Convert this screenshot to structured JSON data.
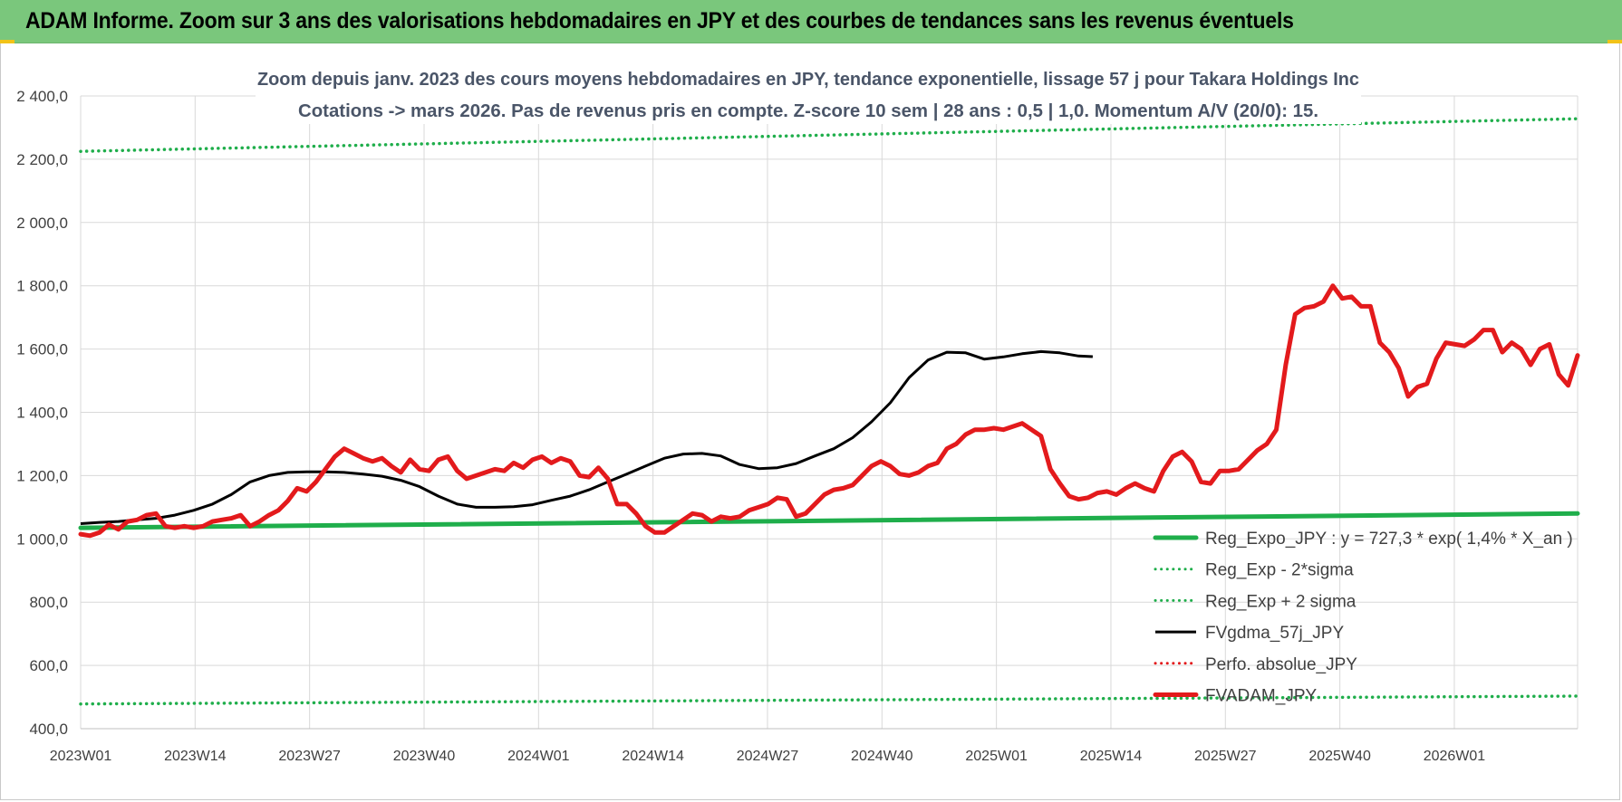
{
  "header": {
    "title": "ADAM Informe. Zoom sur 3 ans des valorisations hebdomadaires en JPY et des courbes de tendances sans les revenus éventuels",
    "background_color": "#7ac77c"
  },
  "chart_data": {
    "type": "line",
    "title_line1": "Zoom depuis janv. 2023 des cours moyens hebdomadaires en JPY, tendance exponentielle, lissage 57 j pour Takara Holdings Inc",
    "title_line2": "Cotations -> mars 2026. Pas de revenus pris en compte. Z-score 10 sem | 28 ans : 0,5 | 1,0. Momentum A/V (20/0): 15.",
    "xlabel": "",
    "ylabel": "",
    "ylim": [
      400,
      2400
    ],
    "y_ticks": [
      "400,0",
      "600,0",
      "800,0",
      "1 000,0",
      "1 200,0",
      "1 400,0",
      "1 600,0",
      "1 800,0",
      "2 000,0",
      "2 200,0",
      "2 400,0"
    ],
    "x_ticks": [
      "2023W01",
      "2023W14",
      "2023W27",
      "2023W40",
      "2024W01",
      "2024W14",
      "2024W27",
      "2024W40",
      "2025W01",
      "2025W14",
      "2025W27",
      "2025W40",
      "2026W01"
    ],
    "weeks_total": 170,
    "grid": true,
    "legend_position": "bottom-right",
    "series": [
      {
        "name": "Reg_Expo_JPY : y = 727,3 * exp( 1,4% *  X_an )",
        "color": "#1fae4b",
        "style": "solid-thick",
        "points": [
          [
            0,
            1035
          ],
          [
            170,
            1080
          ]
        ]
      },
      {
        "name": "Reg_Exp - 2*sigma",
        "color": "#1fae4b",
        "style": "dotted",
        "points": [
          [
            0,
            478
          ],
          [
            170,
            503
          ]
        ]
      },
      {
        "name": "Reg_Exp + 2 sigma",
        "color": "#1fae4b",
        "style": "dotted",
        "points": [
          [
            0,
            2225
          ],
          [
            170,
            2328
          ]
        ]
      },
      {
        "name": "FVgdma_57j_JPY",
        "color": "#000000",
        "style": "solid",
        "points": [
          [
            0,
            1048
          ],
          [
            4,
            1052
          ],
          [
            8,
            1055
          ],
          [
            12,
            1060
          ],
          [
            16,
            1065
          ],
          [
            20,
            1075
          ],
          [
            24,
            1090
          ],
          [
            28,
            1110
          ],
          [
            32,
            1140
          ],
          [
            36,
            1180
          ],
          [
            40,
            1200
          ],
          [
            44,
            1210
          ],
          [
            48,
            1212
          ],
          [
            52,
            1212
          ],
          [
            56,
            1210
          ],
          [
            60,
            1205
          ],
          [
            64,
            1198
          ],
          [
            68,
            1185
          ],
          [
            72,
            1165
          ],
          [
            76,
            1135
          ],
          [
            80,
            1110
          ],
          [
            84,
            1100
          ],
          [
            88,
            1100
          ],
          [
            92,
            1102
          ],
          [
            96,
            1108
          ],
          [
            100,
            1122
          ],
          [
            104,
            1135
          ],
          [
            108,
            1155
          ],
          [
            112,
            1180
          ],
          [
            116,
            1205
          ],
          [
            120,
            1230
          ],
          [
            124,
            1255
          ],
          [
            128,
            1268
          ],
          [
            132,
            1270
          ],
          [
            136,
            1262
          ],
          [
            140,
            1235
          ],
          [
            144,
            1222
          ],
          [
            148,
            1225
          ],
          [
            152,
            1238
          ],
          [
            156,
            1262
          ],
          [
            160,
            1285
          ],
          [
            164,
            1320
          ],
          [
            168,
            1370
          ],
          [
            172,
            1430
          ],
          [
            176,
            1510
          ],
          [
            180,
            1565
          ],
          [
            184,
            1590
          ],
          [
            188,
            1588
          ],
          [
            192,
            1568
          ],
          [
            196,
            1575
          ],
          [
            200,
            1585
          ],
          [
            204,
            1592
          ],
          [
            208,
            1588
          ],
          [
            212,
            1578
          ],
          [
            215,
            1576
          ]
        ]
      },
      {
        "name": "Perfo. absolue_JPY",
        "color": "#e31a1c",
        "style": "dotted",
        "points": []
      },
      {
        "name": "FVADAM_JPY",
        "color": "#e31a1c",
        "style": "solid-thick",
        "points": [
          [
            0,
            1015
          ],
          [
            2,
            1010
          ],
          [
            4,
            1020
          ],
          [
            6,
            1045
          ],
          [
            8,
            1030
          ],
          [
            10,
            1055
          ],
          [
            12,
            1060
          ],
          [
            14,
            1075
          ],
          [
            16,
            1080
          ],
          [
            18,
            1040
          ],
          [
            20,
            1035
          ],
          [
            22,
            1040
          ],
          [
            24,
            1035
          ],
          [
            26,
            1040
          ],
          [
            28,
            1055
          ],
          [
            30,
            1060
          ],
          [
            32,
            1065
          ],
          [
            34,
            1075
          ],
          [
            36,
            1040
          ],
          [
            38,
            1055
          ],
          [
            40,
            1075
          ],
          [
            42,
            1090
          ],
          [
            44,
            1120
          ],
          [
            46,
            1160
          ],
          [
            48,
            1150
          ],
          [
            50,
            1180
          ],
          [
            52,
            1220
          ],
          [
            54,
            1260
          ],
          [
            56,
            1285
          ],
          [
            58,
            1270
          ],
          [
            60,
            1255
          ],
          [
            62,
            1245
          ],
          [
            64,
            1255
          ],
          [
            66,
            1230
          ],
          [
            68,
            1210
          ],
          [
            70,
            1250
          ],
          [
            72,
            1220
          ],
          [
            74,
            1215
          ],
          [
            76,
            1250
          ],
          [
            78,
            1260
          ],
          [
            80,
            1215
          ],
          [
            82,
            1190
          ],
          [
            84,
            1200
          ],
          [
            86,
            1210
          ],
          [
            88,
            1220
          ],
          [
            90,
            1215
          ],
          [
            92,
            1240
          ],
          [
            94,
            1225
          ],
          [
            96,
            1250
          ],
          [
            98,
            1260
          ],
          [
            100,
            1240
          ],
          [
            102,
            1255
          ],
          [
            104,
            1245
          ],
          [
            106,
            1200
          ],
          [
            108,
            1195
          ],
          [
            110,
            1225
          ],
          [
            112,
            1190
          ],
          [
            114,
            1110
          ],
          [
            116,
            1110
          ],
          [
            118,
            1080
          ],
          [
            120,
            1040
          ],
          [
            122,
            1020
          ],
          [
            124,
            1020
          ],
          [
            126,
            1040
          ],
          [
            128,
            1060
          ],
          [
            130,
            1080
          ],
          [
            132,
            1075
          ],
          [
            134,
            1055
          ],
          [
            136,
            1070
          ],
          [
            138,
            1065
          ],
          [
            140,
            1070
          ],
          [
            142,
            1090
          ],
          [
            144,
            1100
          ],
          [
            146,
            1110
          ],
          [
            148,
            1130
          ],
          [
            150,
            1125
          ],
          [
            152,
            1070
          ],
          [
            154,
            1080
          ],
          [
            156,
            1110
          ],
          [
            158,
            1140
          ],
          [
            160,
            1155
          ],
          [
            162,
            1160
          ],
          [
            164,
            1170
          ],
          [
            166,
            1200
          ],
          [
            168,
            1230
          ],
          [
            170,
            1245
          ],
          [
            172,
            1230
          ],
          [
            174,
            1205
          ],
          [
            176,
            1200
          ],
          [
            178,
            1210
          ],
          [
            180,
            1230
          ],
          [
            182,
            1240
          ],
          [
            184,
            1285
          ],
          [
            186,
            1300
          ],
          [
            188,
            1330
          ],
          [
            190,
            1345
          ],
          [
            192,
            1345
          ],
          [
            194,
            1350
          ],
          [
            196,
            1345
          ],
          [
            198,
            1355
          ],
          [
            200,
            1365
          ],
          [
            202,
            1345
          ],
          [
            204,
            1325
          ],
          [
            206,
            1220
          ],
          [
            208,
            1175
          ],
          [
            210,
            1135
          ],
          [
            212,
            1125
          ],
          [
            214,
            1130
          ],
          [
            216,
            1145
          ],
          [
            218,
            1150
          ],
          [
            220,
            1140
          ],
          [
            222,
            1160
          ],
          [
            224,
            1175
          ],
          [
            226,
            1160
          ],
          [
            228,
            1150
          ],
          [
            230,
            1215
          ],
          [
            232,
            1260
          ],
          [
            234,
            1275
          ],
          [
            236,
            1245
          ],
          [
            238,
            1180
          ],
          [
            240,
            1175
          ],
          [
            242,
            1215
          ],
          [
            244,
            1215
          ],
          [
            246,
            1220
          ],
          [
            248,
            1250
          ],
          [
            250,
            1280
          ],
          [
            252,
            1300
          ],
          [
            254,
            1345
          ],
          [
            256,
            1550
          ],
          [
            258,
            1710
          ],
          [
            260,
            1730
          ],
          [
            262,
            1735
          ],
          [
            264,
            1750
          ],
          [
            266,
            1800
          ],
          [
            268,
            1760
          ],
          [
            270,
            1765
          ],
          [
            272,
            1735
          ],
          [
            274,
            1735
          ],
          [
            276,
            1620
          ],
          [
            278,
            1590
          ],
          [
            280,
            1540
          ],
          [
            282,
            1450
          ],
          [
            284,
            1480
          ],
          [
            286,
            1490
          ],
          [
            288,
            1570
          ],
          [
            290,
            1620
          ],
          [
            292,
            1615
          ],
          [
            294,
            1610
          ],
          [
            296,
            1630
          ],
          [
            298,
            1660
          ],
          [
            300,
            1660
          ],
          [
            302,
            1590
          ],
          [
            304,
            1620
          ],
          [
            306,
            1600
          ],
          [
            308,
            1550
          ],
          [
            310,
            1600
          ],
          [
            312,
            1615
          ],
          [
            314,
            1520
          ],
          [
            316,
            1485
          ],
          [
            318,
            1580
          ]
        ]
      }
    ]
  }
}
